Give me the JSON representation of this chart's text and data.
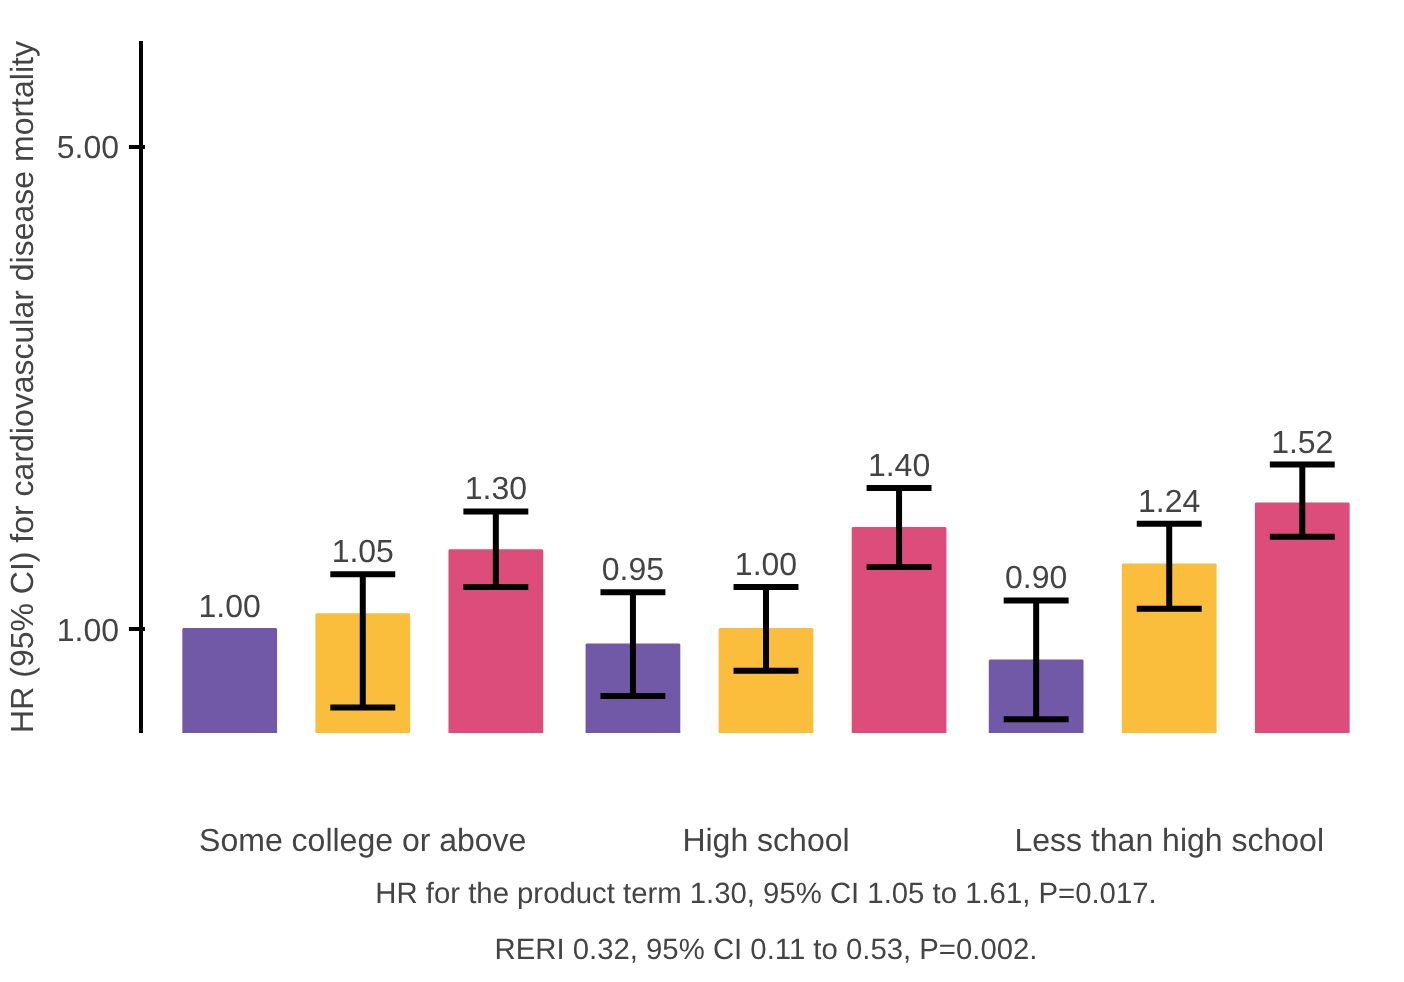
{
  "chart_data": {
    "type": "bar",
    "ylabel": "HR (95% CI) for cardiovascular disease mortality",
    "categories": [
      "Some college or above",
      "High school",
      "Less than high school"
    ],
    "series": [
      {
        "color": "#7159a8",
        "values": [
          1.0,
          0.95,
          0.9
        ],
        "value_labels": [
          "1.00",
          "0.95",
          "0.90"
        ],
        "errors": [
          null,
          [
            0.8,
            1.13
          ],
          [
            0.74,
            1.1
          ]
        ]
      },
      {
        "color": "#fbbd3c",
        "values": [
          1.05,
          1.0,
          1.24
        ],
        "value_labels": [
          "1.05",
          "1.00",
          "1.24"
        ],
        "errors": [
          [
            0.77,
            1.2
          ],
          [
            0.87,
            1.15
          ],
          [
            1.07,
            1.42
          ]
        ]
      },
      {
        "color": "#dc4d7b",
        "values": [
          1.3,
          1.4,
          1.52
        ],
        "value_labels": [
          "1.30",
          "1.40",
          "1.52"
        ],
        "errors": [
          [
            1.15,
            1.48
          ],
          [
            1.23,
            1.6
          ],
          [
            1.36,
            1.73
          ]
        ]
      }
    ],
    "log": "y",
    "ylim": [
      0.707,
      7.1
    ],
    "yticks": [
      {
        "value": 1.0,
        "label": "1.00"
      },
      {
        "value": 5.0,
        "label": "5.00"
      }
    ],
    "grid": false,
    "annotations": [
      "HR for the product term 1.30, 95% CI 1.05 to 1.61, P=0.017.",
      "RERI 0.32, 95% CI 0.11 to 0.53, P=0.002."
    ]
  }
}
